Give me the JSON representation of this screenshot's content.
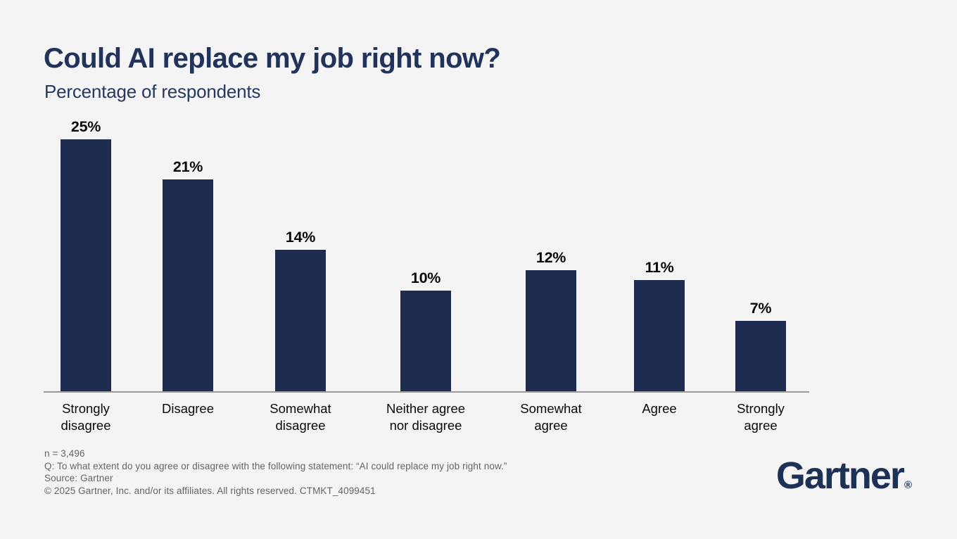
{
  "page": {
    "background": "#f4f4f4"
  },
  "header": {
    "title": "Could AI replace my job right now?",
    "subtitle": "Percentage of respondents"
  },
  "chart_data": {
    "type": "bar",
    "title": "Could AI replace my job right now?",
    "subtitle": "Percentage of respondents",
    "categories": [
      "Strongly disagree",
      "Disagree",
      "Somewhat disagree",
      "Neither agree nor disagree",
      "Somewhat agree",
      "Agree",
      "Strongly agree"
    ],
    "category_label_lines": [
      [
        "Strongly",
        "disagree"
      ],
      [
        "Disagree"
      ],
      [
        "Somewhat",
        "disagree"
      ],
      [
        "Neither agree",
        "nor disagree"
      ],
      [
        "Somewhat",
        "agree"
      ],
      [
        "Agree"
      ],
      [
        "Strongly",
        "agree"
      ]
    ],
    "values": [
      25,
      21,
      14,
      10,
      12,
      11,
      7
    ],
    "value_labels": [
      "25%",
      "21%",
      "14%",
      "10%",
      "12%",
      "11%",
      "7%"
    ],
    "xlabel": "",
    "ylabel": "Percentage of respondents",
    "ylim": [
      0,
      27
    ],
    "grid": false,
    "legend": false,
    "bar_color": "#1e2c52",
    "axis_line_color": "#9b9b9b",
    "value_label_color": "#0a0a0a"
  },
  "footer": {
    "lines": [
      "n = 3,496",
      "Q: To what extent do you agree or disagree with the following statement: “AI could replace my job right now.”",
      "Source: Gartner",
      "© 2025 Gartner, Inc. and/or its affiliates. All rights reserved. CTMKT_4099451"
    ]
  },
  "logo": {
    "text": "Gartner",
    "registered": "®"
  }
}
